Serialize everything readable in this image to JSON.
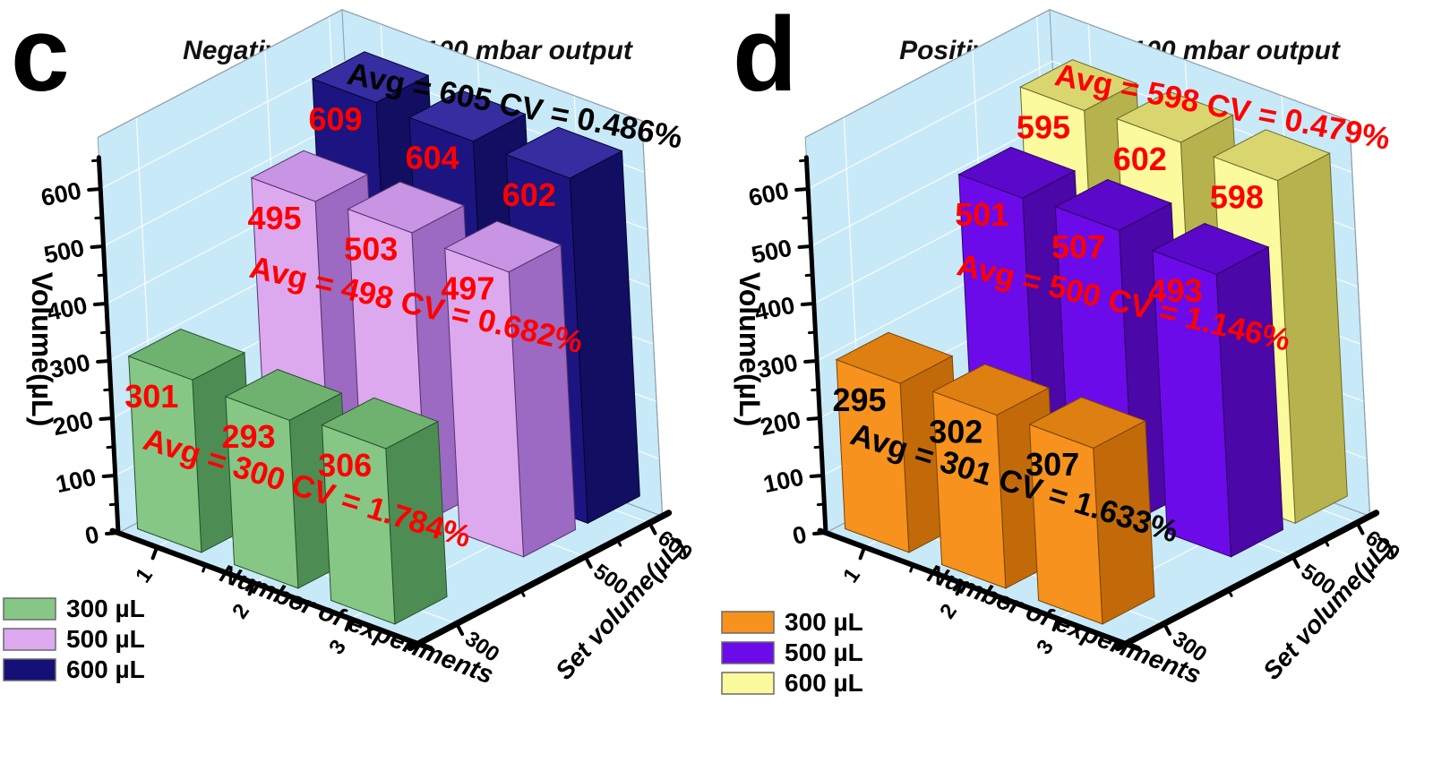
{
  "chart_data": [
    {
      "type": "bar3d",
      "corner_label": "c",
      "title": "Negative pressure 100 mbar output",
      "x_axis": {
        "title": "Number of experiments",
        "ticks": [
          "1",
          "2",
          "3"
        ]
      },
      "y_axis": {
        "title": "Set volume(µL)",
        "ticks": [
          "300",
          "500",
          "600"
        ],
        "values": [
          300,
          500,
          600
        ]
      },
      "z_axis": {
        "title": "Volume(µL)",
        "ticks": [
          0,
          100,
          200,
          300,
          400,
          500,
          600
        ],
        "range": [
          0,
          650
        ]
      },
      "categories": [
        1,
        2,
        3
      ],
      "series": [
        {
          "name": "300 µL",
          "set_volume": 300,
          "values": [
            301,
            293,
            306
          ],
          "colors": {
            "front": "#86C786",
            "side": "#4D8D54",
            "top": "#6FB26F",
            "edge": "#27502C"
          },
          "value_label_color": "#FF0000"
        },
        {
          "name": "500 µL",
          "set_volume": 500,
          "values": [
            495,
            503,
            497
          ],
          "colors": {
            "front": "#DCA9EF",
            "side": "#9C69C3",
            "top": "#C795E3",
            "edge": "#54336B"
          },
          "value_label_color": "#FF0000"
        },
        {
          "name": "600 µL",
          "set_volume": 600,
          "values": [
            609,
            604,
            602
          ],
          "colors": {
            "front": "#1C1581",
            "side": "#120E62",
            "top": "#352DA0",
            "edge": "#05052E"
          },
          "value_label_color": "#FF0000"
        }
      ],
      "annotations": [
        {
          "text": "Avg = 300 CV = 1.784%",
          "color": "#FF0000",
          "series": 0
        },
        {
          "text": "Avg = 498 CV = 0.682%",
          "color": "#FF0000",
          "series": 1
        },
        {
          "text": "Avg = 605 CV = 0.486%",
          "color": "#000000",
          "series": 2
        }
      ],
      "legend": [
        {
          "label": "300 µL",
          "color": "#86C786"
        },
        {
          "label": "500 µL",
          "color": "#DCA9EF"
        },
        {
          "label": "600 µL",
          "color": "#141077"
        }
      ],
      "wall_color": "#C8E9F8",
      "grid_color": "#FFFFFF"
    },
    {
      "type": "bar3d",
      "corner_label": "d",
      "title": "Positive pressure 100 mbar output",
      "x_axis": {
        "title": "Number of experiments",
        "ticks": [
          "1",
          "2",
          "3"
        ]
      },
      "y_axis": {
        "title": "Set volume(µL)",
        "ticks": [
          "300",
          "500",
          "600"
        ],
        "values": [
          300,
          500,
          600
        ]
      },
      "z_axis": {
        "title": "Volume(µL)",
        "ticks": [
          0,
          100,
          200,
          300,
          400,
          500,
          600
        ],
        "range": [
          0,
          650
        ]
      },
      "categories": [
        1,
        2,
        3
      ],
      "series": [
        {
          "name": "300 µL",
          "set_volume": 300,
          "values": [
            295,
            302,
            307
          ],
          "colors": {
            "front": "#F6921D",
            "side": "#C26A0A",
            "top": "#DE7F12",
            "edge": "#7A4406"
          },
          "value_label_color": "#000000"
        },
        {
          "name": "500 µL",
          "set_volume": 500,
          "values": [
            501,
            507,
            493
          ],
          "colors": {
            "front": "#6C0BEA",
            "side": "#4B07A7",
            "top": "#5A08C9",
            "edge": "#2C0560"
          },
          "value_label_color": "#FF0000"
        },
        {
          "name": "600 µL",
          "set_volume": 600,
          "values": [
            595,
            602,
            598
          ],
          "colors": {
            "front": "#FBFA9D",
            "side": "#B6B24D",
            "top": "#DAD66F",
            "edge": "#6E6A2A"
          },
          "value_label_color": "#FF0000"
        }
      ],
      "annotations": [
        {
          "text": "Avg = 301 CV = 1.633%",
          "color": "#000000",
          "series": 0
        },
        {
          "text": "Avg = 500 CV = 1.146%",
          "color": "#FF0000",
          "series": 1
        },
        {
          "text": "Avg = 598 CV = 0.479%",
          "color": "#FF0000",
          "series": 2
        }
      ],
      "legend": [
        {
          "label": "300 µL",
          "color": "#F6921D"
        },
        {
          "label": "500 µL",
          "color": "#6C0BEA"
        },
        {
          "label": "600 µL",
          "color": "#FBFA9D"
        }
      ],
      "wall_color": "#C8E9F8",
      "grid_color": "#FFFFFF"
    }
  ]
}
